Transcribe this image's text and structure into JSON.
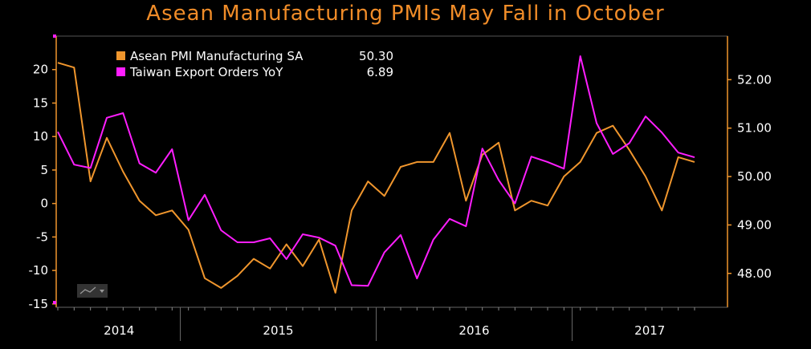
{
  "chart_data": {
    "type": "line",
    "title": "Asean Manufacturing PMIs May Fall in October",
    "years": [
      "2014",
      "2015",
      "2016",
      "2017"
    ],
    "left_axis": {
      "ticks": [
        20,
        15,
        10,
        5,
        0,
        -5,
        -10,
        -15
      ],
      "range": [
        -15.5,
        25
      ]
    },
    "right_axis": {
      "ticks": [
        "52.00",
        "51.00",
        "50.00",
        "49.00",
        "48.00"
      ],
      "range": [
        47.3,
        52.9
      ]
    },
    "legend": {
      "asean_label": "Asean PMI Manufacturing SA",
      "asean_value": "50.30",
      "taiwan_label": "Taiwan Export Orders YoY",
      "taiwan_value": "6.89"
    },
    "colors": {
      "asean": "#f0962d",
      "taiwan": "#ff1eff",
      "axis": "#f0962d"
    },
    "series": [
      {
        "name": "Asean PMI Manufacturing SA",
        "axis": "right",
        "values": [
          52.35,
          52.25,
          49.9,
          50.8,
          50.1,
          49.5,
          49.2,
          49.3,
          48.9,
          47.9,
          47.7,
          47.95,
          48.3,
          48.1,
          48.6,
          48.15,
          48.7,
          47.6,
          49.3,
          49.9,
          49.6,
          50.2,
          50.3,
          50.3,
          50.9,
          49.5,
          50.45,
          50.7,
          49.3,
          49.5,
          49.4,
          50.0,
          50.3,
          50.9,
          51.05,
          50.55,
          50.0,
          49.3,
          50.4,
          50.3
        ]
      },
      {
        "name": "Taiwan Export Orders YoY",
        "axis": "left",
        "values": [
          10.7,
          5.8,
          5.3,
          12.8,
          13.5,
          6.0,
          4.6,
          8.1,
          -2.5,
          1.3,
          -4.0,
          -5.8,
          -5.8,
          -5.2,
          -8.3,
          -4.6,
          -5.1,
          -6.3,
          -12.2,
          -12.3,
          -7.3,
          -4.7,
          -11.2,
          -5.4,
          -2.3,
          -3.4,
          8.2,
          3.5,
          0.0,
          7.0,
          6.2,
          5.2,
          22.0,
          12.0,
          7.4,
          9.0,
          13.0,
          10.6,
          7.6,
          6.89
        ]
      }
    ]
  }
}
